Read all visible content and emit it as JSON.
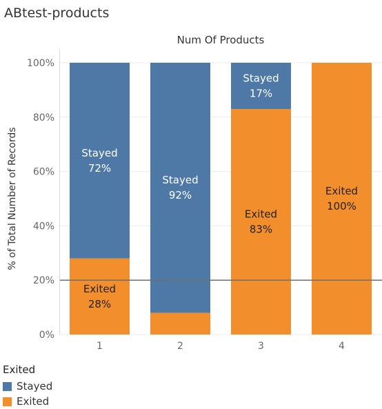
{
  "sheet": {
    "title": "ABtest-products"
  },
  "legend": {
    "title": "Exited",
    "items": [
      {
        "label": "Stayed",
        "color": "#4e79a7"
      },
      {
        "label": "Exited",
        "color": "#f28e2b"
      }
    ]
  },
  "chart_data": {
    "type": "bar",
    "stacked": true,
    "title": "Num Of Products",
    "xlabel": "",
    "ylabel": "% of Total Number of Records",
    "categories": [
      "1",
      "2",
      "3",
      "4"
    ],
    "series": [
      {
        "name": "Exited",
        "color": "#f28e2b",
        "values": [
          28,
          8,
          83,
          100
        ],
        "labels": [
          "Exited\n28%",
          "",
          "Exited\n83%",
          "Exited\n100%"
        ],
        "label_color": "#222222"
      },
      {
        "name": "Stayed",
        "color": "#4e79a7",
        "values": [
          72,
          92,
          17,
          0
        ],
        "labels": [
          "Stayed\n72%",
          "Stayed\n92%",
          "Stayed\n17%",
          ""
        ],
        "label_color": "#ffffff"
      }
    ],
    "yticks": [
      "0%",
      "20%",
      "40%",
      "60%",
      "80%",
      "100%"
    ],
    "ytick_values": [
      0,
      20,
      40,
      60,
      80,
      100
    ],
    "ylim": [
      0,
      100
    ],
    "reference_line": 20,
    "grid": true,
    "legend_position": "bottom-left"
  }
}
